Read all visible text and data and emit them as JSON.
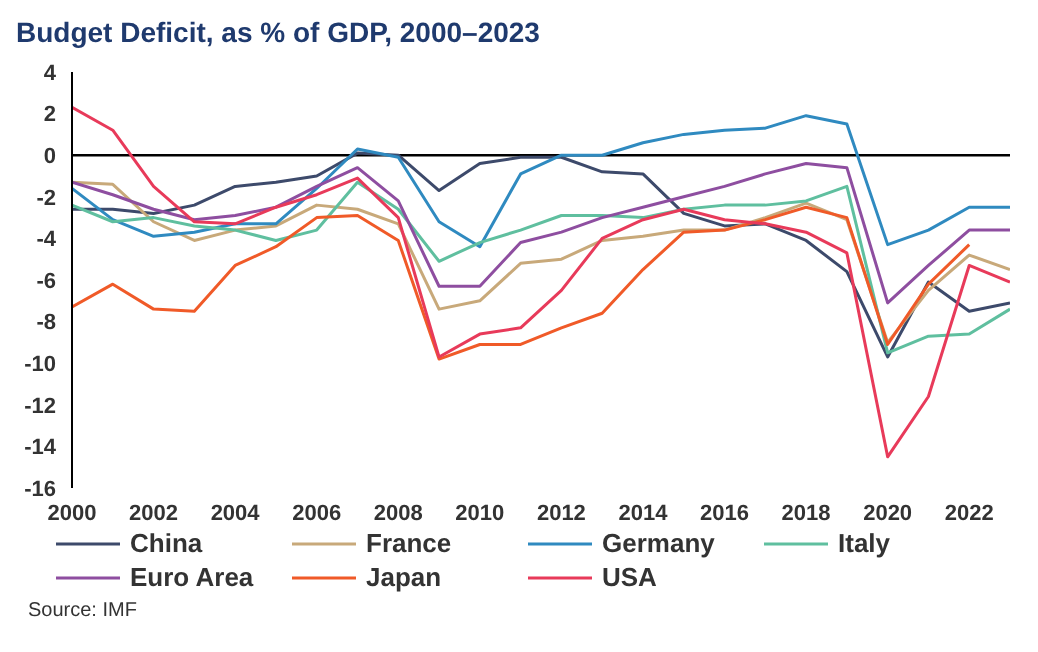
{
  "chart_data": {
    "type": "line",
    "title": "Budget Deficit, as % of GDP, 2000–2023",
    "annotations": [
      "Source: IMF"
    ],
    "x": [
      2000,
      2001,
      2002,
      2003,
      2004,
      2005,
      2006,
      2007,
      2008,
      2009,
      2010,
      2011,
      2012,
      2013,
      2014,
      2015,
      2016,
      2017,
      2018,
      2019,
      2020,
      2021,
      2022,
      2023
    ],
    "xlim": [
      2000,
      2023
    ],
    "xticks": [
      2000,
      2002,
      2004,
      2006,
      2008,
      2010,
      2012,
      2014,
      2016,
      2018,
      2020,
      2022
    ],
    "ylim": [
      -16,
      4
    ],
    "yticks": [
      -16,
      -14,
      -12,
      -10,
      -8,
      -6,
      -4,
      -2,
      0,
      2,
      4
    ],
    "grid": false,
    "legend": "bottom",
    "marker": "none",
    "line_style": "solid",
    "ref_lines": [
      {
        "axis": "y",
        "value": 0,
        "color": "#000000"
      }
    ],
    "series": [
      {
        "name": "China",
        "color": "#3d4a6b",
        "values": [
          -2.6,
          -2.6,
          -2.8,
          -2.4,
          -1.5,
          -1.3,
          -1.0,
          0.1,
          0.0,
          -1.7,
          -0.4,
          -0.1,
          -0.1,
          -0.8,
          -0.9,
          -2.8,
          -3.4,
          -3.3,
          -4.1,
          -5.6,
          -9.7,
          -6.1,
          -7.5,
          -7.1
        ]
      },
      {
        "name": "France",
        "color": "#c8a97a",
        "values": [
          -1.3,
          -1.4,
          -3.2,
          -4.1,
          -3.6,
          -3.4,
          -2.4,
          -2.6,
          -3.3,
          -7.4,
          -7.0,
          -5.2,
          -5.0,
          -4.1,
          -3.9,
          -3.6,
          -3.6,
          -3.0,
          -2.3,
          -3.1,
          -9.0,
          -6.5,
          -4.8,
          -5.5
        ]
      },
      {
        "name": "Germany",
        "color": "#2f8ac0",
        "values": [
          -1.6,
          -3.1,
          -3.9,
          -3.7,
          -3.3,
          -3.3,
          -1.6,
          0.3,
          -0.1,
          -3.2,
          -4.4,
          -0.9,
          0.0,
          0.0,
          0.6,
          1.0,
          1.2,
          1.3,
          1.9,
          1.5,
          -4.3,
          -3.6,
          -2.5,
          -2.5
        ]
      },
      {
        "name": "Italy",
        "color": "#5fbf9f",
        "values": [
          -2.4,
          -3.2,
          -3.0,
          -3.4,
          -3.6,
          -4.1,
          -3.6,
          -1.3,
          -2.6,
          -5.1,
          -4.2,
          -3.6,
          -2.9,
          -2.9,
          -3.0,
          -2.6,
          -2.4,
          -2.4,
          -2.2,
          -1.5,
          -9.5,
          -8.7,
          -8.6,
          -7.4
        ]
      },
      {
        "name": "Euro Area",
        "color": "#8e4ea0",
        "values": [
          -1.3,
          -1.9,
          -2.6,
          -3.1,
          -2.9,
          -2.5,
          -1.5,
          -0.6,
          -2.2,
          -6.3,
          -6.3,
          -4.2,
          -3.7,
          -3.0,
          -2.5,
          -2.0,
          -1.5,
          -0.9,
          -0.4,
          -0.6,
          -7.1,
          -5.3,
          -3.6,
          -3.6
        ]
      },
      {
        "name": "Japan",
        "color": "#f05a28",
        "values": [
          -7.3,
          -6.2,
          -7.4,
          -7.5,
          -5.3,
          -4.4,
          -3.0,
          -2.9,
          -4.1,
          -9.8,
          -9.1,
          -9.1,
          -8.3,
          -7.6,
          -5.5,
          -3.7,
          -3.6,
          -3.1,
          -2.5,
          -3.0,
          -9.1,
          -6.2,
          -4.3,
          null
        ]
      },
      {
        "name": "USA",
        "color": "#e83a5a",
        "values": [
          2.3,
          1.2,
          -1.5,
          -3.2,
          -3.3,
          -2.5,
          -1.9,
          -1.1,
          -3.0,
          -9.7,
          -8.6,
          -8.3,
          -6.5,
          -4.0,
          -3.1,
          -2.6,
          -3.1,
          -3.3,
          -3.7,
          -4.7,
          -14.5,
          -11.6,
          -5.3,
          -6.1
        ]
      }
    ]
  }
}
